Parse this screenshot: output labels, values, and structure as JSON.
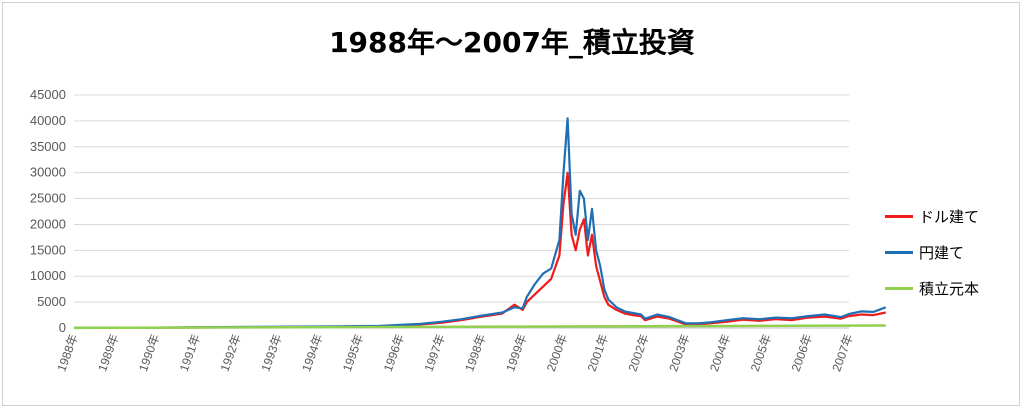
{
  "chart_data": {
    "type": "line",
    "title": "1988年～2007年_積立投資",
    "xlabel": "",
    "ylabel": "",
    "ylim": [
      0,
      45000
    ],
    "yticks": [
      0,
      5000,
      10000,
      15000,
      20000,
      25000,
      30000,
      35000,
      40000,
      45000
    ],
    "xlim": [
      1988,
      2007
    ],
    "xticks": [
      "1988年",
      "1989年",
      "1990年",
      "1991年",
      "1992年",
      "1993年",
      "1994年",
      "1995年",
      "1996年",
      "1997年",
      "1998年",
      "1999年",
      "2000年",
      "2001年",
      "2002年",
      "2003年",
      "2004年",
      "2005年",
      "2006年",
      "2007年"
    ],
    "grid": true,
    "legend": "right",
    "series": [
      {
        "name": "ドル建て",
        "color": "#ee1c1c",
        "x": [
          1988.0,
          1990.0,
          1991.5,
          1993.0,
          1994.5,
          1995.5,
          1996.0,
          1996.5,
          1997.0,
          1997.5,
          1998.0,
          1998.5,
          1998.8,
          1999.0,
          1999.1,
          1999.3,
          1999.5,
          1999.7,
          1999.9,
          2000.0,
          2000.1,
          2000.2,
          2000.3,
          2000.4,
          2000.5,
          2000.6,
          2000.7,
          2000.8,
          2000.9,
          2001.0,
          2001.1,
          2001.3,
          2001.5,
          2001.7,
          2001.9,
          2002.0,
          2002.3,
          2002.6,
          2003.0,
          2003.3,
          2003.6,
          2004.0,
          2004.4,
          2004.8,
          2005.2,
          2005.6,
          2006.0,
          2006.4,
          2006.8,
          2007.0,
          2007.3,
          2007.6,
          2007.9
        ],
        "values": [
          40,
          60,
          120,
          180,
          250,
          350,
          500,
          700,
          1000,
          1500,
          2200,
          2800,
          4500,
          3500,
          5000,
          6500,
          8000,
          9500,
          14000,
          24000,
          30000,
          18000,
          15000,
          19000,
          21000,
          14000,
          18000,
          12000,
          9000,
          6000,
          4500,
          3500,
          2800,
          2500,
          2300,
          1500,
          2200,
          1800,
          700,
          700,
          900,
          1200,
          1600,
          1400,
          1700,
          1500,
          2000,
          2200,
          1800,
          2300,
          2600,
          2500,
          3000
        ]
      },
      {
        "name": "円建て",
        "color": "#1f6fb5",
        "x": [
          1988.0,
          1990.0,
          1991.5,
          1993.0,
          1994.5,
          1995.5,
          1996.0,
          1996.5,
          1997.0,
          1997.5,
          1998.0,
          1998.5,
          1998.8,
          1999.0,
          1999.1,
          1999.3,
          1999.5,
          1999.7,
          1999.9,
          2000.0,
          2000.1,
          2000.2,
          2000.3,
          2000.4,
          2000.5,
          2000.6,
          2000.7,
          2000.8,
          2000.9,
          2001.0,
          2001.1,
          2001.3,
          2001.5,
          2001.7,
          2001.9,
          2002.0,
          2002.3,
          2002.6,
          2003.0,
          2003.3,
          2003.6,
          2004.0,
          2004.4,
          2004.8,
          2005.2,
          2005.6,
          2006.0,
          2006.4,
          2006.8,
          2007.0,
          2007.3,
          2007.6,
          2007.9
        ],
        "values": [
          50,
          80,
          180,
          250,
          300,
          400,
          600,
          800,
          1200,
          1700,
          2400,
          3000,
          4000,
          3800,
          6000,
          8500,
          10500,
          11500,
          17000,
          30000,
          40500,
          22000,
          18000,
          26500,
          25000,
          17000,
          23000,
          15000,
          12000,
          7500,
          5500,
          4000,
          3200,
          2900,
          2600,
          1800,
          2600,
          2100,
          900,
          900,
          1100,
          1500,
          1900,
          1700,
          2000,
          1900,
          2300,
          2600,
          2100,
          2700,
          3200,
          3100,
          4000
        ]
      },
      {
        "name": "積立元本",
        "color": "#92d050",
        "x": [
          1988.0,
          2007.9
        ],
        "values": [
          20,
          480
        ]
      }
    ]
  }
}
